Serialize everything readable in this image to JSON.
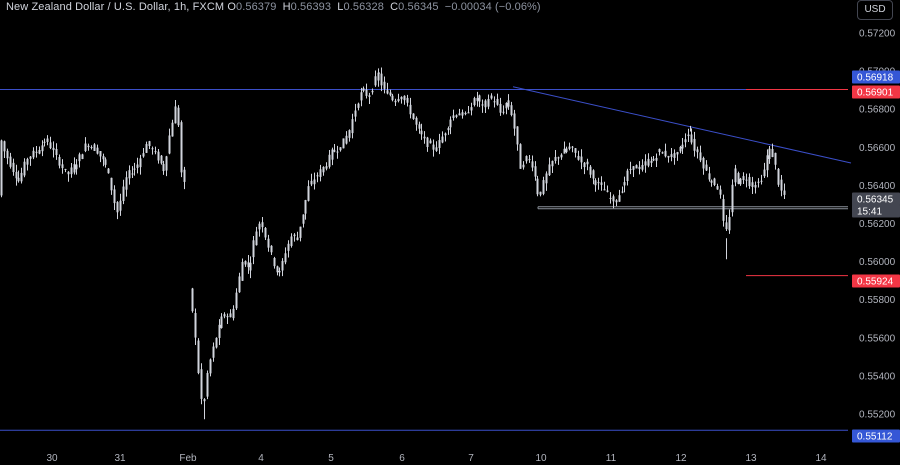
{
  "header": {
    "symbol": "New Zealand Dollar / U.S. Dollar, 1h, FXCM",
    "open_label": "O",
    "open": "0.56379",
    "high_label": "H",
    "high": "0.56393",
    "low_label": "L",
    "low": "0.56328",
    "close_label": "C",
    "close": "0.56345",
    "change": "−0.00034 (−0.06%)"
  },
  "currency_button": "USD",
  "colors": {
    "background": "#000000",
    "candle": "#d1d4dc",
    "trendline": "#3b4fc9",
    "support_line": "#8a8f99",
    "blue_label": "#3557d6",
    "red_label": "#f23645",
    "current_label": "#434651"
  },
  "chart_data": {
    "type": "candlestick",
    "title": "New Zealand Dollar / U.S. Dollar, 1h, FXCM",
    "x_ticks": [
      "30",
      "31",
      "Feb",
      "4",
      "5",
      "6",
      "7",
      "10",
      "11",
      "12",
      "13",
      "14"
    ],
    "y_ticks": [
      "0.57200",
      "0.57000",
      "0.56800",
      "0.56600",
      "0.56400",
      "0.56200",
      "0.56000",
      "0.55800",
      "0.55600",
      "0.55400",
      "0.55200"
    ],
    "ylim": [
      0.5507,
      0.5731
    ],
    "price_labels": [
      {
        "value": "0.56918",
        "style": "blue"
      },
      {
        "value": "0.56901",
        "style": "red"
      },
      {
        "value": "0.56345",
        "style": "current"
      },
      {
        "value": "15:41",
        "style": "current"
      },
      {
        "value": "0.55924",
        "style": "red"
      },
      {
        "value": "0.55112",
        "style": "blue"
      }
    ],
    "horizontal_lines": [
      {
        "price": 0.56901,
        "style": "blue-full"
      },
      {
        "price": 0.55112,
        "style": "blue-full"
      },
      {
        "price": 0.56901,
        "style": "red-short"
      },
      {
        "price": 0.55924,
        "style": "red-short"
      },
      {
        "price": 0.56275,
        "style": "gray-support"
      },
      {
        "price": 0.56285,
        "style": "gray-support"
      }
    ],
    "trendline": {
      "from": {
        "day": "7",
        "price": 0.56915
      },
      "to": {
        "day": "13",
        "price": 0.56515
      }
    },
    "path": [
      [
        0,
        0.5668
      ],
      [
        5,
        0.5658
      ],
      [
        12,
        0.565
      ],
      [
        20,
        0.5642
      ],
      [
        28,
        0.5654
      ],
      [
        38,
        0.5658
      ],
      [
        48,
        0.5664
      ],
      [
        58,
        0.5654
      ],
      [
        68,
        0.5645
      ],
      [
        78,
        0.5652
      ],
      [
        88,
        0.5662
      ],
      [
        98,
        0.5658
      ],
      [
        108,
        0.5649
      ],
      [
        118,
        0.5625
      ],
      [
        128,
        0.5645
      ],
      [
        138,
        0.565
      ],
      [
        148,
        0.5662
      ],
      [
        158,
        0.5655
      ],
      [
        165,
        0.5648
      ],
      [
        172,
        0.567
      ],
      [
        178,
        0.5684
      ],
      [
        183,
        0.564
      ],
      [
        186,
        0.564
      ],
      [
        191,
        0.5584
      ],
      [
        195,
        0.557
      ],
      [
        199,
        0.5545
      ],
      [
        204,
        0.552
      ],
      [
        208,
        0.554
      ],
      [
        212,
        0.555
      ],
      [
        218,
        0.5562
      ],
      [
        225,
        0.5573
      ],
      [
        232,
        0.557
      ],
      [
        238,
        0.5585
      ],
      [
        244,
        0.5602
      ],
      [
        250,
        0.5595
      ],
      [
        256,
        0.5614
      ],
      [
        262,
        0.5622
      ],
      [
        268,
        0.561
      ],
      [
        274,
        0.56
      ],
      [
        280,
        0.5592
      ],
      [
        286,
        0.5604
      ],
      [
        292,
        0.5613
      ],
      [
        298,
        0.5612
      ],
      [
        304,
        0.5625
      ],
      [
        310,
        0.5639
      ],
      [
        318,
        0.5645
      ],
      [
        326,
        0.565
      ],
      [
        334,
        0.5658
      ],
      [
        342,
        0.566
      ],
      [
        350,
        0.5668
      ],
      [
        358,
        0.5683
      ],
      [
        364,
        0.569
      ],
      [
        370,
        0.5686
      ],
      [
        375,
        0.5693
      ],
      [
        379,
        0.5699
      ],
      [
        384,
        0.569
      ],
      [
        390,
        0.5688
      ],
      [
        396,
        0.5684
      ],
      [
        402,
        0.5688
      ],
      [
        410,
        0.568
      ],
      [
        418,
        0.567
      ],
      [
        426,
        0.5663
      ],
      [
        434,
        0.5659
      ],
      [
        440,
        0.5662
      ],
      [
        446,
        0.5668
      ],
      [
        452,
        0.5675
      ],
      [
        458,
        0.5678
      ],
      [
        466,
        0.5676
      ],
      [
        472,
        0.5682
      ],
      [
        478,
        0.5686
      ],
      [
        484,
        0.568
      ],
      [
        490,
        0.5686
      ],
      [
        496,
        0.5684
      ],
      [
        502,
        0.5677
      ],
      [
        508,
        0.5684
      ],
      [
        514,
        0.5676
      ],
      [
        518,
        0.5662
      ],
      [
        522,
        0.5648
      ],
      [
        528,
        0.5655
      ],
      [
        534,
        0.565
      ],
      [
        540,
        0.5633
      ],
      [
        546,
        0.5643
      ],
      [
        552,
        0.5651
      ],
      [
        558,
        0.5655
      ],
      [
        564,
        0.5657
      ],
      [
        570,
        0.566
      ],
      [
        576,
        0.5657
      ],
      [
        582,
        0.5652
      ],
      [
        588,
        0.565
      ],
      [
        594,
        0.5643
      ],
      [
        600,
        0.564
      ],
      [
        606,
        0.5637
      ],
      [
        612,
        0.5632
      ],
      [
        618,
        0.5633
      ],
      [
        624,
        0.5639
      ],
      [
        630,
        0.5648
      ],
      [
        636,
        0.565
      ],
      [
        642,
        0.5648
      ],
      [
        648,
        0.5653
      ],
      [
        654,
        0.5652
      ],
      [
        660,
        0.5658
      ],
      [
        666,
        0.5656
      ],
      [
        672,
        0.5655
      ],
      [
        678,
        0.5656
      ],
      [
        684,
        0.5662
      ],
      [
        690,
        0.5668
      ],
      [
        694,
        0.566
      ],
      [
        700,
        0.5656
      ],
      [
        706,
        0.5648
      ],
      [
        712,
        0.5642
      ],
      [
        718,
        0.564
      ],
      [
        722,
        0.5633
      ],
      [
        726,
        0.5612
      ],
      [
        730,
        0.5622
      ],
      [
        733,
        0.564
      ],
      [
        736,
        0.5648
      ],
      [
        740,
        0.564
      ],
      [
        746,
        0.5645
      ],
      [
        752,
        0.564
      ],
      [
        758,
        0.564
      ],
      [
        764,
        0.5645
      ],
      [
        768,
        0.5655
      ],
      [
        772,
        0.5659
      ],
      [
        776,
        0.5652
      ],
      [
        780,
        0.564
      ],
      [
        784,
        0.56345
      ]
    ],
    "grid": false
  }
}
